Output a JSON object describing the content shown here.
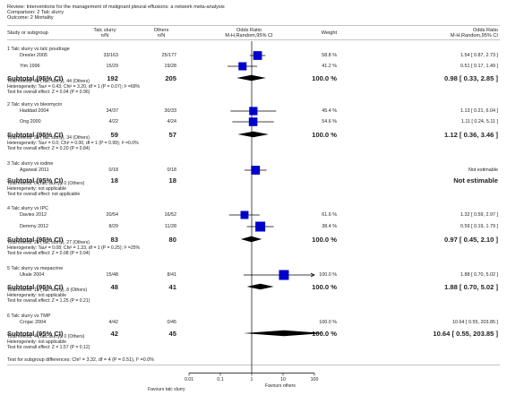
{
  "header": {
    "review": "Review:  Interventions for the management of malignant pleural effusions: a network meta-analysis",
    "comparison": "Comparison:  2 Talc slurry",
    "outcome": "Outcome:  2 Mortality"
  },
  "columns": {
    "study": "Study or subgroup",
    "talc": [
      "Talc slurry",
      "n/N"
    ],
    "others": [
      "Others",
      "n/N"
    ],
    "or_plot": [
      "Odds Ratio",
      "M-H,Random,95% CI"
    ],
    "weight": "Weight",
    "or_text": [
      "Odds Ratio",
      "M-H,Random,95% CI"
    ]
  },
  "subgroups": [
    {
      "title": "1 Talc slurry vs talc poudrage",
      "studies": [
        {
          "name": "Dresler 2005",
          "talc": "33/163",
          "others": "25/177",
          "weight": "58.8 %",
          "ci_text": "1.54 [ 0.87, 2.73 ]"
        },
        {
          "name": "Yim 1996",
          "talc": "15/29",
          "others": "19/28",
          "weight": "41.2 %",
          "ci_text": "0.51 [ 0.17, 1.49 ]"
        }
      ],
      "subtotal": {
        "label": "Subtotal (95% CI)",
        "talc": "192",
        "others": "205",
        "weight": "100.0 %",
        "ci_text": "0.98 [ 0.33, 2.85 ]"
      },
      "notes": [
        "Total events: 48 (Talc slurry), 44 (Others)",
        "Heterogeneity: Tau² = 0.43; Chi² = 3.20, df = 1 (P = 0.07); I² =69%",
        "Test for overall effect: Z = 0.04 (P = 0.96)"
      ]
    },
    {
      "title": "2 Talc slurry vs bleomycin",
      "studies": [
        {
          "name": "Haddad 2004",
          "talc": "34/37",
          "others": "30/33",
          "weight": "45.4 %",
          "ci_text": "1.13 [ 0.21, 6.04 ]"
        },
        {
          "name": "Ong 2000",
          "talc": "4/22",
          "others": "4/24",
          "weight": "54.6 %",
          "ci_text": "1.11 [ 0.24, 5.11 ]"
        }
      ],
      "subtotal": {
        "label": "Subtotal (95% CI)",
        "talc": "59",
        "others": "57",
        "weight": "100.0 %",
        "ci_text": "1.12 [ 0.36, 3.46 ]"
      },
      "notes": [
        "Total events: 38 (Talc slurry), 34 (Others)",
        "Heterogeneity: Tau² = 0.0; Chi² = 0.00, df = 1 (P = 0.99); I² =0.0%",
        "Test for overall effect: Z = 0.20 (P = 0.84)"
      ]
    },
    {
      "title": "3 Talc slurry vs iodine",
      "studies": [
        {
          "name": "Agarwal 2011",
          "talc": "0/18",
          "others": "0/18",
          "weight": "",
          "ci_text": "Not estimable"
        }
      ],
      "subtotal": {
        "label": "Subtotal (95% CI)",
        "talc": "18",
        "others": "18",
        "weight": "",
        "ci_text": "Not estimable"
      },
      "notes": [
        "Total events: 0 (Talc slurry), 0 (Others)",
        "Heterogeneity: not applicable",
        "Test for overall effect: not applicable"
      ]
    },
    {
      "title": "4 Talc slurry vs IPC",
      "studies": [
        {
          "name": "Davies 2012",
          "talc": "20/54",
          "others": "16/52",
          "weight": "61.6 %",
          "ci_text": "1.32 [ 0.59, 2.97 ]"
        },
        {
          "name": "Demmy 2012",
          "talc": "8/29",
          "others": "11/28",
          "weight": "38.4 %",
          "ci_text": "0.59 [ 0.19, 1.79 ]"
        }
      ],
      "subtotal": {
        "label": "Subtotal (95% CI)",
        "talc": "83",
        "others": "80",
        "weight": "100.0 %",
        "ci_text": "0.97 [ 0.45, 2.10 ]"
      },
      "notes": [
        "Total events: 28 (Talc slurry), 27 (Others)",
        "Heterogeneity: Tau² = 0.08; Chi² = 1.33, df = 1 (P = 0.25); I² =25%",
        "Test for overall effect: Z = 0.08 (P = 0.94)"
      ]
    },
    {
      "title": "5 Talc slurry vs mepacrine",
      "studies": [
        {
          "name": "Ukale 2004",
          "talc": "15/48",
          "others": "8/41",
          "weight": "100.0 %",
          "ci_text": "1.88 [ 0.70, 5.02 ]"
        }
      ],
      "subtotal": {
        "label": "Subtotal (95% CI)",
        "talc": "48",
        "others": "41",
        "weight": "100.0 %",
        "ci_text": "1.88 [ 0.70, 5.02 ]"
      },
      "notes": [
        "Total events: 15 (Talc slurry), 8 (Others)",
        "Heterogeneity: not applicable",
        "Test for overall effect: Z = 1.25 (P = 0.21)"
      ]
    },
    {
      "title": "6 Talc slurry vs TMP",
      "studies": [
        {
          "name": "Crnjac 2004",
          "talc": "4/42",
          "others": "0/45",
          "weight": "100.0 %",
          "ci_text": "10.64 [ 0.55, 203.85 ]"
        }
      ],
      "subtotal": {
        "label": "Subtotal (95% CI)",
        "talc": "42",
        "others": "45",
        "weight": "100.0 %",
        "ci_text": "10.64 [ 0.55, 203.85 ]"
      },
      "notes": [
        "Total events: 4 (Talc slurry), 0 (Others)",
        "Heterogeneity: not applicable",
        "Test for overall effect: Z = 1.57 (P = 0.12)"
      ]
    }
  ],
  "footer": {
    "subgroup_test": "Test for subgroup differences: Chi² = 3.32, df = 4 (P = 0.51), I² =0.0%",
    "favours_left": "Favours talc slurry",
    "favours_right": "Favours others"
  },
  "chart_data": {
    "type": "forest",
    "scale": "log",
    "xlim": [
      0.01,
      100
    ],
    "tick_labels": [
      "0.01",
      "0.1",
      "1",
      "10",
      "100"
    ],
    "ticks": [
      0.01,
      0.1,
      1,
      10,
      100
    ],
    "null_line": 1,
    "studies": [
      {
        "name": "Dresler 2005",
        "or": 1.54,
        "lo": 0.87,
        "hi": 2.73,
        "weight": 58.8
      },
      {
        "name": "Yim 1996",
        "or": 0.51,
        "lo": 0.17,
        "hi": 1.49,
        "weight": 41.2
      },
      {
        "name": "Haddad 2004",
        "or": 1.13,
        "lo": 0.21,
        "hi": 6.04,
        "weight": 45.4
      },
      {
        "name": "Ong 2000",
        "or": 1.11,
        "lo": 0.24,
        "hi": 5.11,
        "weight": 54.6
      },
      {
        "name": "Davies 2012",
        "or": 1.32,
        "lo": 0.59,
        "hi": 2.97,
        "weight": 61.6
      },
      {
        "name": "Demmy 2012",
        "or": 0.59,
        "lo": 0.19,
        "hi": 1.79,
        "weight": 38.4
      },
      {
        "name": "Ukale 2004",
        "or": 1.88,
        "lo": 0.7,
        "hi": 5.02,
        "weight": 100.0
      },
      {
        "name": "Crnjac 2004",
        "or": 10.64,
        "lo": 0.55,
        "hi": 203.85,
        "weight": 100.0
      }
    ],
    "subtotals": [
      {
        "subgroup": 1,
        "or": 0.98,
        "lo": 0.33,
        "hi": 2.85
      },
      {
        "subgroup": 2,
        "or": 1.12,
        "lo": 0.36,
        "hi": 3.46
      },
      {
        "subgroup": 4,
        "or": 0.97,
        "lo": 0.45,
        "hi": 2.1
      },
      {
        "subgroup": 5,
        "or": 1.88,
        "lo": 0.7,
        "hi": 5.02
      },
      {
        "subgroup": 6,
        "or": 10.64,
        "lo": 0.55,
        "hi": 203.85
      }
    ]
  }
}
